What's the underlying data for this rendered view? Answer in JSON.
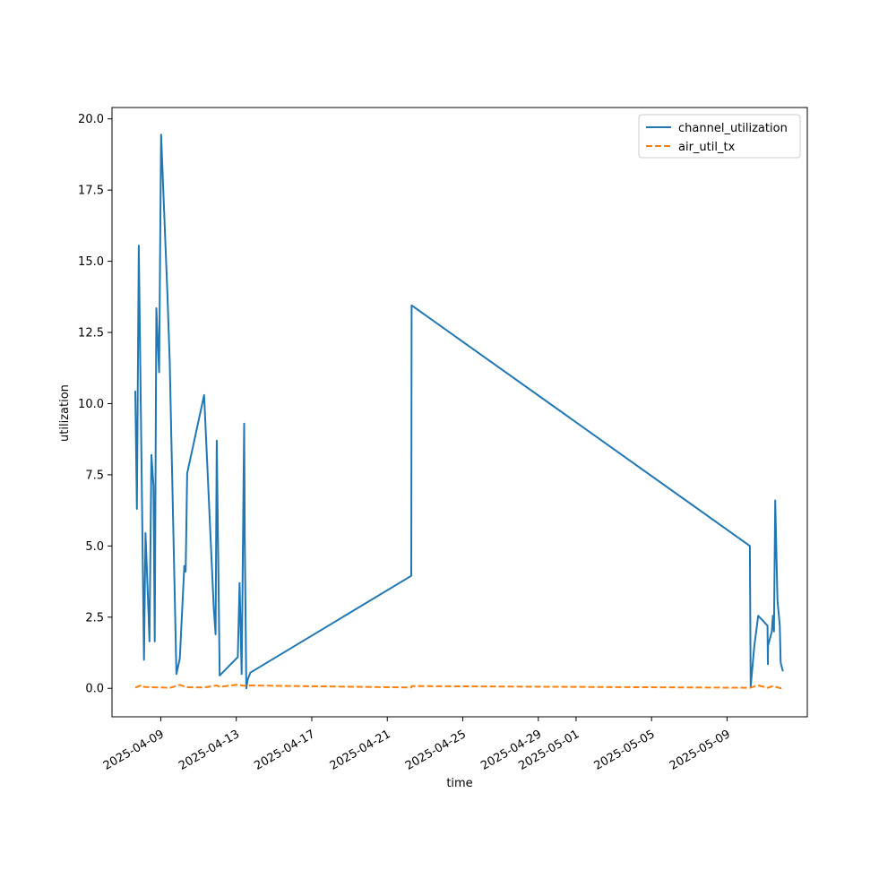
{
  "chart_data": {
    "type": "line",
    "title": "",
    "xlabel": "time",
    "ylabel": "utilization",
    "xlim": [
      "2025-04-06T10:00",
      "2025-05-13T06:00"
    ],
    "ylim": [
      -1.0,
      20.4
    ],
    "grid": false,
    "legend_position": "top-right",
    "x_ticks": [
      "2025-04-09",
      "2025-04-13",
      "2025-04-17",
      "2025-04-21",
      "2025-04-25",
      "2025-04-29",
      "2025-05-01",
      "2025-05-05",
      "2025-05-09"
    ],
    "y_ticks": [
      "0.0",
      "2.5",
      "5.0",
      "7.5",
      "10.0",
      "12.5",
      "15.0",
      "17.5",
      "20.0"
    ],
    "series": [
      {
        "name": "channel_utilization",
        "color": "#1f77b4",
        "style": "solid",
        "points": [
          [
            "2025-04-07T15:38",
            10.45
          ],
          [
            "2025-04-07T17:41",
            6.3
          ],
          [
            "2025-04-07T20:05",
            15.55
          ],
          [
            "2025-04-08T02:38",
            1.0
          ],
          [
            "2025-04-08T04:36",
            5.45
          ],
          [
            "2025-04-08T08:28",
            2.6
          ],
          [
            "2025-04-08T09:40",
            1.65
          ],
          [
            "2025-04-08T12:09",
            8.2
          ],
          [
            "2025-04-08T14:48",
            7.1
          ],
          [
            "2025-04-08T16:19",
            1.65
          ],
          [
            "2025-04-08T18:20",
            13.35
          ],
          [
            "2025-04-08T21:56",
            11.1
          ],
          [
            "2025-04-09T00:29",
            19.45
          ],
          [
            "2025-04-09T08:33",
            13.8
          ],
          [
            "2025-04-09T11:19",
            11.5
          ],
          [
            "2025-04-09T19:55",
            0.5
          ],
          [
            "2025-04-10T00:14",
            1.05
          ],
          [
            "2025-04-10T05:58",
            4.3
          ],
          [
            "2025-04-10T07:41",
            4.1
          ],
          [
            "2025-04-10T09:35",
            7.55
          ],
          [
            "2025-04-11T07:08",
            10.3
          ],
          [
            "2025-04-11T19:24",
            2.8
          ],
          [
            "2025-04-11T21:41",
            1.9
          ],
          [
            "2025-04-11T23:07",
            8.7
          ],
          [
            "2025-04-12T02:55",
            0.45
          ],
          [
            "2025-04-13T01:56",
            1.1
          ],
          [
            "2025-04-13T04:13",
            3.7
          ],
          [
            "2025-04-13T06:50",
            0.5
          ],
          [
            "2025-04-13T10:05",
            9.3
          ],
          [
            "2025-04-13T10:48",
            5.2
          ],
          [
            "2025-04-13T12:43",
            0.0
          ],
          [
            "2025-04-13T14:26",
            0.3
          ],
          [
            "2025-04-13T17:56",
            0.55
          ],
          [
            "2025-04-22T06:29",
            3.95
          ],
          [
            "2025-04-22T06:58",
            13.45
          ],
          [
            "2025-05-10T05:00",
            5.0
          ],
          [
            "2025-05-10T06:00",
            0.05
          ],
          [
            "2025-05-10T10:42",
            1.5
          ],
          [
            "2025-05-10T15:36",
            2.55
          ],
          [
            "2025-05-11T03:22",
            2.2
          ],
          [
            "2025-05-11T03:51",
            0.85
          ],
          [
            "2025-05-11T04:05",
            1.5
          ],
          [
            "2025-05-11T08:55",
            2.0
          ],
          [
            "2025-05-11T10:14",
            2.55
          ],
          [
            "2025-05-11T11:38",
            2.0
          ],
          [
            "2025-05-11T13:12",
            6.6
          ],
          [
            "2025-05-11T16:05",
            3.1
          ],
          [
            "2025-05-11T19:00",
            2.2
          ],
          [
            "2025-05-11T20:10",
            0.9
          ],
          [
            "2025-05-11T23:04",
            0.6
          ]
        ]
      },
      {
        "name": "air_util_tx",
        "color": "#ff7f0e",
        "style": "dashed",
        "points": [
          [
            "2025-04-07T15:38",
            0.03
          ],
          [
            "2025-04-07T20:00",
            0.07
          ],
          [
            "2025-04-08T00:00",
            0.12
          ],
          [
            "2025-04-08T02:38",
            0.05
          ],
          [
            "2025-04-08T12:00",
            0.04
          ],
          [
            "2025-04-09T12:00",
            0.02
          ],
          [
            "2025-04-10T00:14",
            0.12
          ],
          [
            "2025-04-10T09:35",
            0.04
          ],
          [
            "2025-04-11T07:08",
            0.03
          ],
          [
            "2025-04-11T23:07",
            0.1
          ],
          [
            "2025-04-12T02:55",
            0.05
          ],
          [
            "2025-04-13T01:56",
            0.13
          ],
          [
            "2025-04-13T04:13",
            0.11
          ],
          [
            "2025-04-13T10:05",
            0.09
          ],
          [
            "2025-04-13T17:56",
            0.1
          ],
          [
            "2025-04-22T06:29",
            0.03
          ],
          [
            "2025-04-22T06:58",
            0.08
          ],
          [
            "2025-05-10T05:00",
            0.02
          ],
          [
            "2025-05-10T15:36",
            0.1
          ],
          [
            "2025-05-11T03:51",
            0.02
          ],
          [
            "2025-05-11T10:14",
            0.08
          ],
          [
            "2025-05-11T20:10",
            0.0
          ],
          [
            "2025-05-11T23:04",
            0.06
          ]
        ]
      }
    ]
  }
}
